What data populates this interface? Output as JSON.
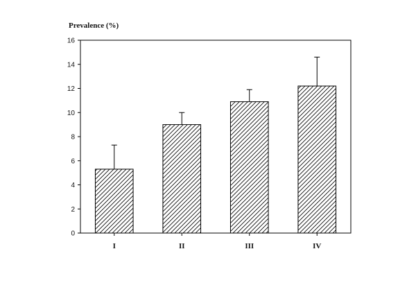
{
  "chart_data": {
    "type": "bar",
    "ylabel": "Prevalence (%)",
    "xlabel": "",
    "ylim": [
      0,
      16
    ],
    "yticks": [
      0,
      2,
      4,
      6,
      8,
      10,
      12,
      14,
      16
    ],
    "categories": [
      "I",
      "II",
      "III",
      "IV"
    ],
    "values": [
      5.3,
      9.0,
      10.9,
      12.2
    ],
    "error_upper": [
      7.3,
      10.0,
      11.9,
      14.6
    ],
    "grid": false,
    "legend": "none",
    "bar_fill": "hatched",
    "colors": {
      "stroke": "#000000",
      "background": "#ffffff"
    }
  }
}
